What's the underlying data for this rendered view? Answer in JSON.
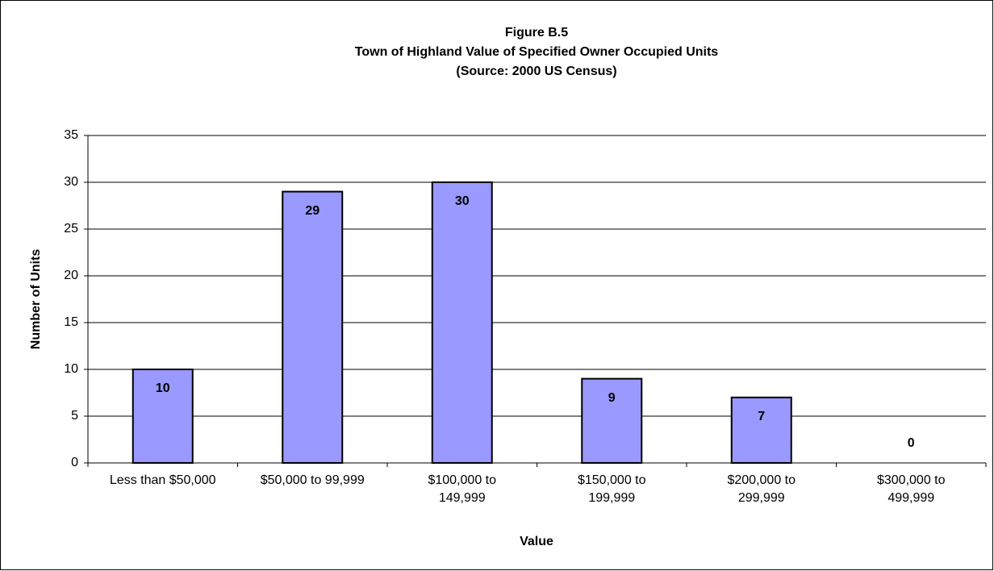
{
  "chart_data": {
    "type": "bar",
    "title": [
      "Figure B.5",
      "Town of Highland Value of Specified Owner Occupied Units",
      "(Source:  2000 US Census)"
    ],
    "x_label": "Value",
    "y_label": "Number of Units",
    "categories": [
      [
        "Less than $50,000"
      ],
      [
        "$50,000 to 99,999"
      ],
      [
        "$100,000 to",
        "149,999"
      ],
      [
        "$150,000 to",
        "199,999"
      ],
      [
        "$200,000 to",
        "299,999"
      ],
      [
        "$300,000 to",
        "499,999"
      ]
    ],
    "values": [
      10,
      29,
      30,
      9,
      7,
      0
    ],
    "color": "#9999ff",
    "ylim": [
      0,
      35
    ],
    "yticks": [
      0,
      5,
      10,
      15,
      20,
      25,
      30,
      35
    ],
    "grid": true
  }
}
